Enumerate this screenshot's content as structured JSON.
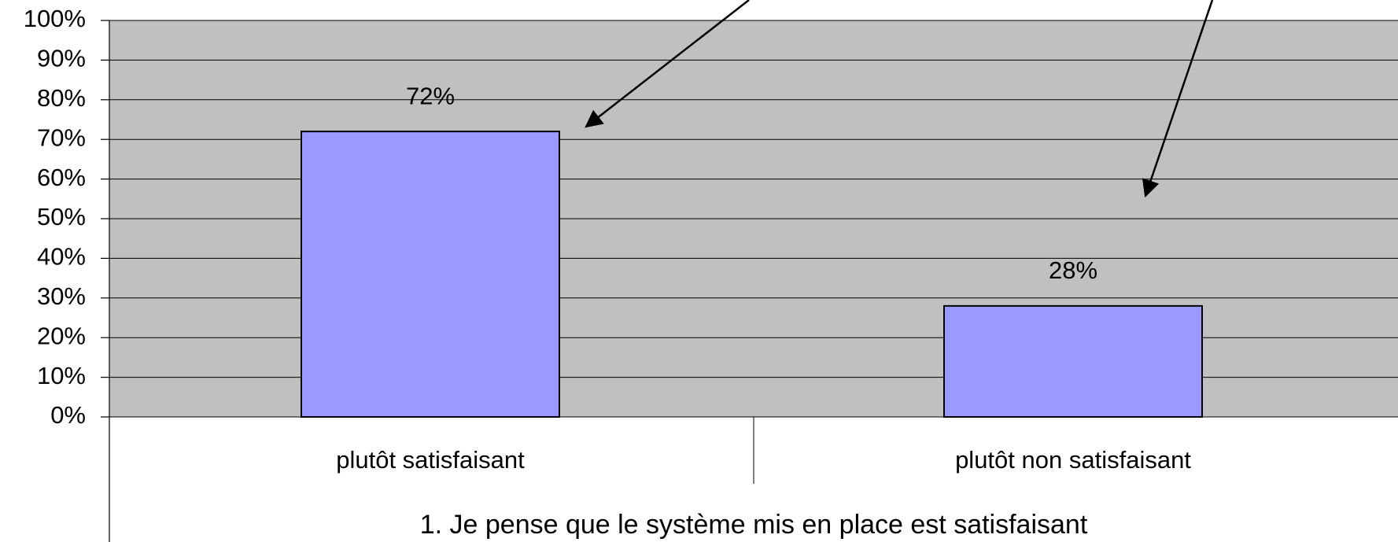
{
  "chart_data": {
    "type": "bar",
    "x_label": "1. Je pense que le système mis en place est satisfaisant",
    "categories": [
      "plutôt satisfaisant",
      "plutôt non satisfaisant"
    ],
    "values": [
      72,
      28
    ],
    "value_labels": [
      "72%",
      "28%"
    ],
    "color": "#9999ff",
    "ylim": [
      0,
      100
    ],
    "yticks": [
      {
        "value": 0,
        "label": "0%"
      },
      {
        "value": 10,
        "label": "10%"
      },
      {
        "value": 20,
        "label": "20%"
      },
      {
        "value": 30,
        "label": "30%"
      },
      {
        "value": 40,
        "label": "40%"
      },
      {
        "value": 50,
        "label": "50%"
      },
      {
        "value": 60,
        "label": "60%"
      },
      {
        "value": 70,
        "label": "70%"
      },
      {
        "value": 80,
        "label": "80%"
      },
      {
        "value": 90,
        "label": "90%"
      },
      {
        "value": 100,
        "label": "100%"
      }
    ],
    "grid": true
  }
}
